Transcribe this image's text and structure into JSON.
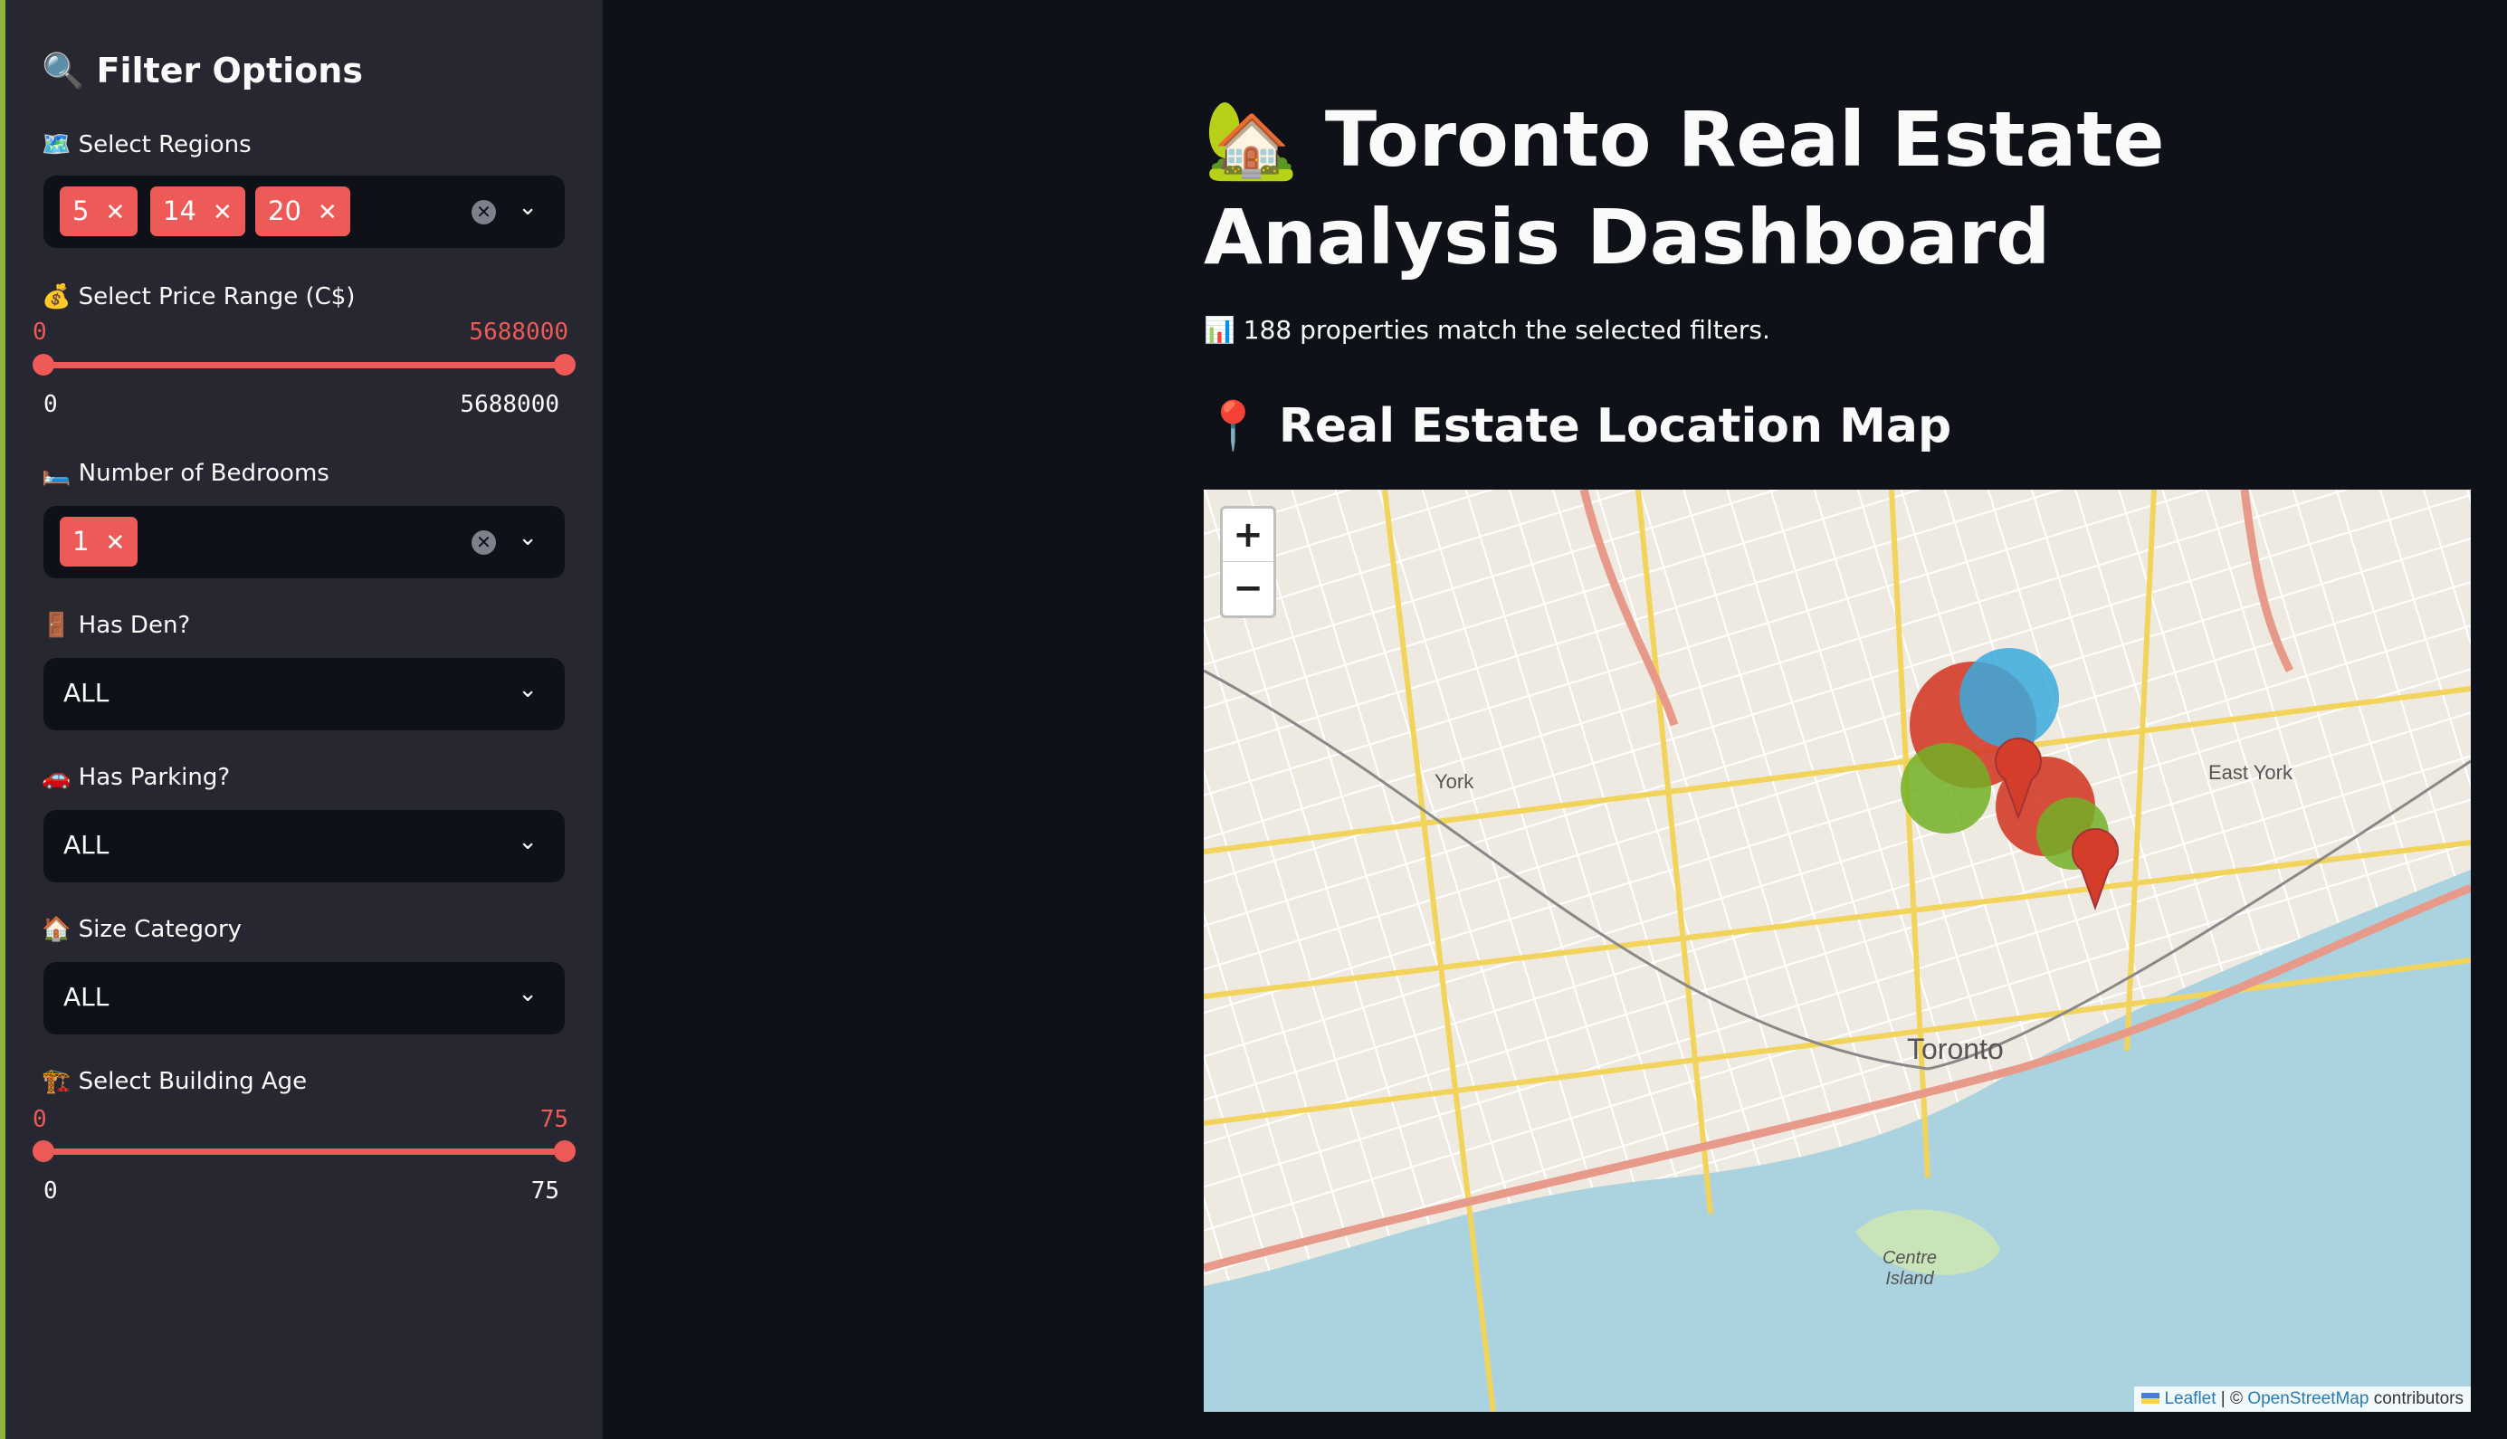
{
  "sidebar": {
    "title": "🔍 Filter Options",
    "regions": {
      "label": "🗺️ Select Regions",
      "tags": [
        "5",
        "14",
        "20"
      ]
    },
    "price": {
      "label": "💰 Select Price Range (C$)",
      "low": "0",
      "high": "5688000",
      "min": "0",
      "max": "5688000"
    },
    "bedrooms": {
      "label": "🛏️ Number of Bedrooms",
      "tags": [
        "1"
      ]
    },
    "den": {
      "label": "🚪 Has Den?",
      "value": "ALL"
    },
    "parking": {
      "label": "🚗 Has Parking?",
      "value": "ALL"
    },
    "size": {
      "label": "🏠 Size Category",
      "value": "ALL"
    },
    "age": {
      "label": "🏗️ Select Building Age",
      "low": "0",
      "high": "75",
      "min": "0",
      "max": "75"
    }
  },
  "main": {
    "title": "🏡 Toronto Real Estate Analysis Dashboard",
    "caption": "📊 188 properties match the selected filters.",
    "map_header": "📍 Real Estate Location Map"
  },
  "map": {
    "zoom_in": "+",
    "zoom_out": "−",
    "labels": {
      "york": "York",
      "east_york": "East York",
      "toronto": "Toronto",
      "centre_island": "Centre Island"
    },
    "attribution": {
      "leaflet": "Leaflet",
      "sep": " | © ",
      "osm": "OpenStreetMap",
      "contributors": " contributors"
    },
    "marker_colors": [
      "#d33d29",
      "#38aadd",
      "#72b026",
      "#a23336"
    ]
  }
}
